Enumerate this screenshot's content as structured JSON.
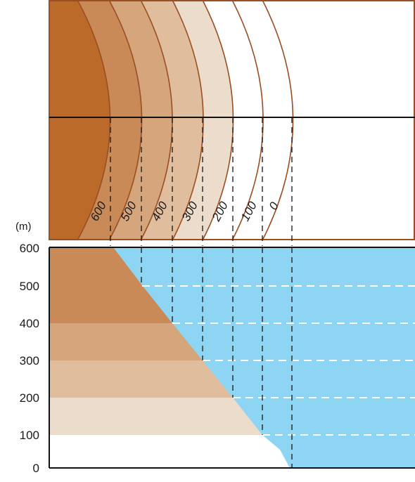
{
  "diagram": {
    "unit_label": "(m)",
    "contour_labels": [
      "600",
      "500",
      "400",
      "300",
      "200",
      "100",
      "0"
    ],
    "elevation_axis_ticks": [
      "600",
      "500",
      "400",
      "300",
      "200",
      "100",
      "0"
    ],
    "band_colors": [
      "#bc6a2a",
      "#c98a57",
      "#d5a57c",
      "#e0bd9d",
      "#ecdccb",
      "#ffffff"
    ],
    "water_color": "#8dd5f3",
    "contour_line_color": "#9a4f22"
  }
}
